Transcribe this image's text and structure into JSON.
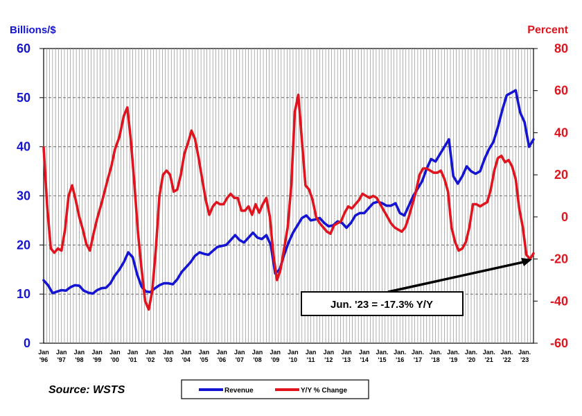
{
  "chart_data": {
    "type": "line",
    "left_axis": {
      "title": "Billions/$",
      "color": "#1414d2",
      "ylim": [
        0,
        60
      ],
      "ticks": [
        0,
        10,
        20,
        30,
        40,
        50,
        60
      ]
    },
    "right_axis": {
      "title": "Percent",
      "color": "#e0141e",
      "ylim": [
        -60,
        80
      ],
      "ticks": [
        -60,
        -40,
        -20,
        0,
        20,
        40,
        60,
        80
      ]
    },
    "x_range": [
      1996.0,
      2023.5
    ],
    "x_ticks": [
      {
        "top": "Jan",
        "bottom": "'96"
      },
      {
        "top": "Jan",
        "bottom": "'97"
      },
      {
        "top": "Jan",
        "bottom": "'98"
      },
      {
        "top": "Jan",
        "bottom": "'99"
      },
      {
        "top": "Jan",
        "bottom": "'00"
      },
      {
        "top": "Jan",
        "bottom": "'01"
      },
      {
        "top": "Jan",
        "bottom": "'02"
      },
      {
        "top": "Jan",
        "bottom": "'03"
      },
      {
        "top": "Jan",
        "bottom": "'04"
      },
      {
        "top": "Jan",
        "bottom": "'05"
      },
      {
        "top": "Jan",
        "bottom": "'06"
      },
      {
        "top": "Jan",
        "bottom": "'07"
      },
      {
        "top": "Jan",
        "bottom": "'08"
      },
      {
        "top": "Jan",
        "bottom": "'09"
      },
      {
        "top": "Jan",
        "bottom": "'10"
      },
      {
        "top": "Jan",
        "bottom": "'11"
      },
      {
        "top": "Jan",
        "bottom": "'12"
      },
      {
        "top": "Jan",
        "bottom": "'13"
      },
      {
        "top": "Jan",
        "bottom": "'14"
      },
      {
        "top": "Jan.",
        "bottom": "'15"
      },
      {
        "top": "Jan.",
        "bottom": "'16"
      },
      {
        "top": "Jan.",
        "bottom": "'17"
      },
      {
        "top": "Jan.",
        "bottom": "'18"
      },
      {
        "top": "Jan.",
        "bottom": "'19"
      },
      {
        "top": "Jan.",
        "bottom": "'20"
      },
      {
        "top": "Jan.",
        "bottom": "'21"
      },
      {
        "top": "Jan.",
        "bottom": "'22"
      },
      {
        "top": "Jan.",
        "bottom": "'23"
      }
    ],
    "series": [
      {
        "name": "Revenue",
        "axis": "left",
        "color": "#1414d2",
        "points": [
          [
            1996.0,
            12.8
          ],
          [
            1996.25,
            11.8
          ],
          [
            1996.5,
            10.2
          ],
          [
            1996.75,
            10.5
          ],
          [
            1997.0,
            10.8
          ],
          [
            1997.25,
            10.7
          ],
          [
            1997.5,
            11.4
          ],
          [
            1997.75,
            11.8
          ],
          [
            1998.0,
            11.7
          ],
          [
            1998.25,
            10.7
          ],
          [
            1998.5,
            10.3
          ],
          [
            1998.75,
            10.1
          ],
          [
            1999.0,
            10.8
          ],
          [
            1999.25,
            11.2
          ],
          [
            1999.5,
            11.3
          ],
          [
            1999.75,
            12.2
          ],
          [
            2000.0,
            13.8
          ],
          [
            2000.25,
            15.0
          ],
          [
            2000.5,
            16.5
          ],
          [
            2000.75,
            18.5
          ],
          [
            2001.0,
            17.5
          ],
          [
            2001.25,
            14.0
          ],
          [
            2001.5,
            11.5
          ],
          [
            2001.75,
            10.5
          ],
          [
            2002.0,
            10.4
          ],
          [
            2002.25,
            11.2
          ],
          [
            2002.5,
            11.8
          ],
          [
            2002.75,
            12.2
          ],
          [
            2003.0,
            12.2
          ],
          [
            2003.25,
            12.0
          ],
          [
            2003.5,
            13.0
          ],
          [
            2003.75,
            14.5
          ],
          [
            2004.0,
            15.5
          ],
          [
            2004.25,
            16.5
          ],
          [
            2004.5,
            17.8
          ],
          [
            2004.75,
            18.5
          ],
          [
            2005.0,
            18.2
          ],
          [
            2005.25,
            18.0
          ],
          [
            2005.5,
            18.8
          ],
          [
            2005.75,
            19.6
          ],
          [
            2006.0,
            19.8
          ],
          [
            2006.25,
            20.0
          ],
          [
            2006.5,
            21.0
          ],
          [
            2006.75,
            22.0
          ],
          [
            2007.0,
            21.0
          ],
          [
            2007.25,
            20.5
          ],
          [
            2007.5,
            21.5
          ],
          [
            2007.75,
            22.5
          ],
          [
            2008.0,
            21.5
          ],
          [
            2008.25,
            21.2
          ],
          [
            2008.5,
            22.0
          ],
          [
            2008.75,
            20.0
          ],
          [
            2009.0,
            14.2
          ],
          [
            2009.25,
            15.0
          ],
          [
            2009.5,
            18.0
          ],
          [
            2009.75,
            20.5
          ],
          [
            2010.0,
            22.5
          ],
          [
            2010.25,
            24.0
          ],
          [
            2010.5,
            25.5
          ],
          [
            2010.75,
            26.0
          ],
          [
            2011.0,
            25.0
          ],
          [
            2011.25,
            25.2
          ],
          [
            2011.5,
            25.5
          ],
          [
            2011.75,
            24.5
          ],
          [
            2012.0,
            23.8
          ],
          [
            2012.25,
            24.0
          ],
          [
            2012.5,
            24.8
          ],
          [
            2012.75,
            24.5
          ],
          [
            2013.0,
            23.5
          ],
          [
            2013.25,
            24.5
          ],
          [
            2013.5,
            26.0
          ],
          [
            2013.75,
            26.5
          ],
          [
            2014.0,
            26.5
          ],
          [
            2014.25,
            27.5
          ],
          [
            2014.5,
            28.5
          ],
          [
            2014.75,
            28.8
          ],
          [
            2015.0,
            28.5
          ],
          [
            2015.25,
            28.0
          ],
          [
            2015.5,
            28.0
          ],
          [
            2015.75,
            28.5
          ],
          [
            2016.0,
            26.5
          ],
          [
            2016.25,
            26.0
          ],
          [
            2016.5,
            28.0
          ],
          [
            2016.75,
            30.0
          ],
          [
            2017.0,
            31.5
          ],
          [
            2017.25,
            33.0
          ],
          [
            2017.5,
            35.5
          ],
          [
            2017.75,
            37.5
          ],
          [
            2018.0,
            37.0
          ],
          [
            2018.25,
            38.5
          ],
          [
            2018.5,
            40.0
          ],
          [
            2018.75,
            41.5
          ],
          [
            2019.0,
            34.0
          ],
          [
            2019.25,
            32.5
          ],
          [
            2019.5,
            34.0
          ],
          [
            2019.75,
            36.0
          ],
          [
            2020.0,
            35.0
          ],
          [
            2020.25,
            34.5
          ],
          [
            2020.5,
            35.0
          ],
          [
            2020.75,
            37.5
          ],
          [
            2021.0,
            39.5
          ],
          [
            2021.25,
            41.0
          ],
          [
            2021.5,
            44.0
          ],
          [
            2021.75,
            47.5
          ],
          [
            2022.0,
            50.5
          ],
          [
            2022.25,
            51.0
          ],
          [
            2022.5,
            51.5
          ],
          [
            2022.75,
            47.0
          ],
          [
            2023.0,
            45.0
          ],
          [
            2023.25,
            40.0
          ],
          [
            2023.5,
            41.5
          ]
        ]
      },
      {
        "name": "Y/Y % Change",
        "axis": "right",
        "color": "#e0141e",
        "points": [
          [
            1996.0,
            33
          ],
          [
            1996.2,
            5
          ],
          [
            1996.4,
            -15
          ],
          [
            1996.6,
            -17
          ],
          [
            1996.8,
            -15
          ],
          [
            1997.0,
            -16
          ],
          [
            1997.2,
            -6
          ],
          [
            1997.4,
            10
          ],
          [
            1997.6,
            15
          ],
          [
            1997.8,
            8
          ],
          [
            1998.0,
            0
          ],
          [
            1998.2,
            -6
          ],
          [
            1998.4,
            -13
          ],
          [
            1998.6,
            -16
          ],
          [
            1998.8,
            -8
          ],
          [
            1999.0,
            -1
          ],
          [
            1999.3,
            8
          ],
          [
            1999.6,
            18
          ],
          [
            1999.8,
            24
          ],
          [
            2000.0,
            32
          ],
          [
            2000.25,
            38
          ],
          [
            2000.5,
            48
          ],
          [
            2000.7,
            52
          ],
          [
            2000.9,
            36
          ],
          [
            2001.1,
            15
          ],
          [
            2001.3,
            -8
          ],
          [
            2001.5,
            -25
          ],
          [
            2001.7,
            -40
          ],
          [
            2001.9,
            -44
          ],
          [
            2002.1,
            -35
          ],
          [
            2002.3,
            -15
          ],
          [
            2002.5,
            10
          ],
          [
            2002.7,
            20
          ],
          [
            2002.9,
            22
          ],
          [
            2003.1,
            20
          ],
          [
            2003.3,
            12
          ],
          [
            2003.5,
            13
          ],
          [
            2003.7,
            20
          ],
          [
            2003.9,
            30
          ],
          [
            2004.1,
            35
          ],
          [
            2004.3,
            41
          ],
          [
            2004.5,
            37
          ],
          [
            2004.7,
            28
          ],
          [
            2004.9,
            18
          ],
          [
            2005.1,
            8
          ],
          [
            2005.3,
            1
          ],
          [
            2005.5,
            5
          ],
          [
            2005.7,
            7
          ],
          [
            2005.9,
            6
          ],
          [
            2006.1,
            6
          ],
          [
            2006.3,
            9
          ],
          [
            2006.5,
            11
          ],
          [
            2006.7,
            9
          ],
          [
            2006.9,
            9
          ],
          [
            2007.1,
            3
          ],
          [
            2007.3,
            3
          ],
          [
            2007.5,
            5
          ],
          [
            2007.7,
            1
          ],
          [
            2007.9,
            6
          ],
          [
            2008.1,
            2
          ],
          [
            2008.3,
            6
          ],
          [
            2008.5,
            9
          ],
          [
            2008.7,
            0
          ],
          [
            2008.9,
            -18
          ],
          [
            2009.1,
            -30
          ],
          [
            2009.3,
            -25
          ],
          [
            2009.5,
            -15
          ],
          [
            2009.7,
            -5
          ],
          [
            2009.9,
            15
          ],
          [
            2010.1,
            50
          ],
          [
            2010.3,
            58
          ],
          [
            2010.5,
            36
          ],
          [
            2010.7,
            15
          ],
          [
            2010.9,
            13
          ],
          [
            2011.1,
            8
          ],
          [
            2011.3,
            0
          ],
          [
            2011.5,
            -3
          ],
          [
            2011.7,
            -5
          ],
          [
            2011.9,
            -7
          ],
          [
            2012.1,
            -8
          ],
          [
            2012.3,
            -4
          ],
          [
            2012.5,
            -3
          ],
          [
            2012.7,
            -2
          ],
          [
            2012.9,
            2
          ],
          [
            2013.1,
            5
          ],
          [
            2013.3,
            4
          ],
          [
            2013.5,
            6
          ],
          [
            2013.7,
            8
          ],
          [
            2013.9,
            11
          ],
          [
            2014.1,
            10
          ],
          [
            2014.3,
            9
          ],
          [
            2014.5,
            10
          ],
          [
            2014.7,
            9
          ],
          [
            2014.9,
            6
          ],
          [
            2015.1,
            3
          ],
          [
            2015.3,
            0
          ],
          [
            2015.5,
            -3
          ],
          [
            2015.7,
            -5
          ],
          [
            2015.9,
            -6
          ],
          [
            2016.1,
            -7
          ],
          [
            2016.3,
            -5
          ],
          [
            2016.5,
            0
          ],
          [
            2016.7,
            6
          ],
          [
            2016.9,
            12
          ],
          [
            2017.1,
            20
          ],
          [
            2017.3,
            23
          ],
          [
            2017.5,
            23
          ],
          [
            2017.7,
            22
          ],
          [
            2017.9,
            21
          ],
          [
            2018.1,
            21
          ],
          [
            2018.3,
            22
          ],
          [
            2018.5,
            18
          ],
          [
            2018.7,
            12
          ],
          [
            2018.9,
            -5
          ],
          [
            2019.1,
            -12
          ],
          [
            2019.3,
            -16
          ],
          [
            2019.5,
            -15
          ],
          [
            2019.7,
            -12
          ],
          [
            2019.9,
            -5
          ],
          [
            2020.1,
            6
          ],
          [
            2020.3,
            6
          ],
          [
            2020.5,
            5
          ],
          [
            2020.7,
            6
          ],
          [
            2020.9,
            7
          ],
          [
            2021.1,
            13
          ],
          [
            2021.3,
            22
          ],
          [
            2021.5,
            28
          ],
          [
            2021.7,
            29
          ],
          [
            2021.9,
            26
          ],
          [
            2022.1,
            27
          ],
          [
            2022.3,
            24
          ],
          [
            2022.5,
            18
          ],
          [
            2022.7,
            4
          ],
          [
            2022.9,
            -5
          ],
          [
            2023.1,
            -18
          ],
          [
            2023.3,
            -20
          ],
          [
            2023.5,
            -17.3
          ]
        ]
      }
    ],
    "annotation": {
      "text": "Jun. '23 = -17.3% Y/Y",
      "x": 2023.5,
      "y_right": -20
    },
    "source": "Source: WSTS",
    "legend": [
      {
        "label": "Revenue",
        "color": "#1414d2"
      },
      {
        "label": "Y/Y % Change",
        "color": "#e0141e"
      }
    ]
  }
}
